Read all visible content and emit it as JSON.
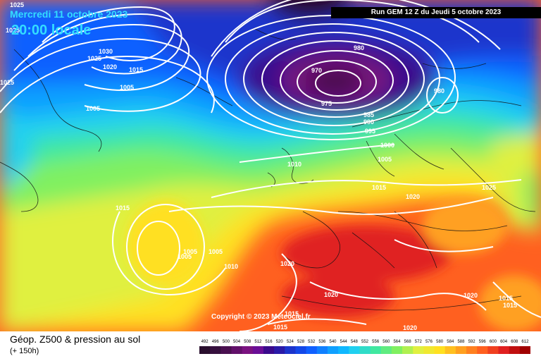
{
  "header": {
    "date": "Mercredi 11 octobre 2023",
    "time": "20:00 locale",
    "run": "Run GEM 12 Z du Jeudi 5 octobre 2023"
  },
  "copyright": "Copyright © 2023 Meteociel.fr",
  "footer": {
    "title": "Géop. Z500 & pression au sol",
    "subtitle": "(+ 150h)"
  },
  "colors": {
    "z492": "#2a0f2e",
    "z500": "#4a1050",
    "z508": "#7a1280",
    "z516": "#3a0a8c",
    "z524": "#1c34cc",
    "z532": "#1060ff",
    "z540": "#10a0ff",
    "z548": "#20d0f0",
    "z556": "#40e8a0",
    "z564": "#80f060",
    "z572": "#e0f040",
    "z580": "#ffe020",
    "z588": "#ffa020",
    "z596": "#ff6020",
    "z604": "#e02020",
    "z612": "#a00000"
  },
  "scale": {
    "labels": [
      "492",
      "496",
      "500",
      "504",
      "508",
      "512",
      "516",
      "520",
      "524",
      "528",
      "532",
      "536",
      "540",
      "544",
      "548",
      "552",
      "556",
      "560",
      "564",
      "568",
      "572",
      "576",
      "580",
      "584",
      "588",
      "592",
      "596",
      "600",
      "604",
      "608",
      "612"
    ],
    "colors": [
      "#2a0f2e",
      "#36103e",
      "#4a1050",
      "#62106a",
      "#7a1280",
      "#6a0e96",
      "#3a0a8c",
      "#2a1aa8",
      "#1c34cc",
      "#1448e8",
      "#1060ff",
      "#1080ff",
      "#10a0ff",
      "#10b8ff",
      "#20d0f0",
      "#30dcc8",
      "#40e8a0",
      "#60ec80",
      "#80f060",
      "#b0f050",
      "#e0f040",
      "#f0e830",
      "#ffe020",
      "#ffc020",
      "#ffa020",
      "#ff8020",
      "#ff6020",
      "#f04020",
      "#e02020",
      "#c01010",
      "#a00000"
    ]
  },
  "isobars": [
    {
      "text": "1025",
      "pos": "a"
    },
    {
      "text": "1025",
      "pos": "b"
    },
    {
      "text": "1030",
      "pos": "c"
    },
    {
      "text": "1025",
      "pos": "d"
    },
    {
      "text": "1020",
      "pos": "e"
    },
    {
      "text": "1015",
      "pos": "f"
    },
    {
      "text": "1005",
      "pos": "g"
    },
    {
      "text": "1025",
      "pos": "h"
    },
    {
      "text": "1005",
      "pos": "i"
    },
    {
      "text": "980",
      "pos": "j"
    },
    {
      "text": "970",
      "pos": "k"
    },
    {
      "text": "975",
      "pos": "l"
    },
    {
      "text": "980",
      "pos": "m"
    },
    {
      "text": "985",
      "pos": "n"
    },
    {
      "text": "990",
      "pos": "o"
    },
    {
      "text": "995",
      "pos": "p"
    },
    {
      "text": "1000",
      "pos": "q"
    },
    {
      "text": "1005",
      "pos": "r"
    },
    {
      "text": "1010",
      "pos": "s"
    },
    {
      "text": "1015",
      "pos": "t"
    },
    {
      "text": "1020",
      "pos": "u"
    },
    {
      "text": "1025",
      "pos": "v"
    },
    {
      "text": "1015",
      "pos": "w"
    },
    {
      "text": "1005",
      "pos": "x"
    },
    {
      "text": "1005",
      "pos": "y"
    },
    {
      "text": "1005",
      "pos": "z"
    },
    {
      "text": "1010",
      "pos": "aa"
    },
    {
      "text": "1020",
      "pos": "ab"
    },
    {
      "text": "1020",
      "pos": "ac"
    },
    {
      "text": "1020",
      "pos": "ad"
    },
    {
      "text": "1015",
      "pos": "ae"
    },
    {
      "text": "1015",
      "pos": "af"
    },
    {
      "text": "1015",
      "pos": "ag"
    },
    {
      "text": "1020",
      "pos": "ah"
    },
    {
      "text": "1015",
      "pos": "ai"
    }
  ]
}
